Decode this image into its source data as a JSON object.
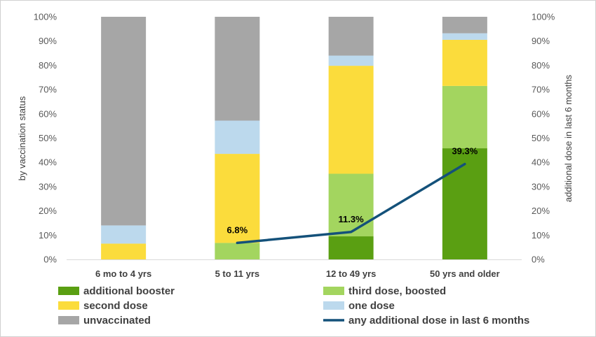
{
  "chart_data": {
    "type": "bar",
    "stacked": true,
    "categories": [
      "6 mo to 4 yrs",
      "5 to 11 yrs",
      "12 to 49 yrs",
      "50 yrs and older"
    ],
    "ylabel": "by vaccination status",
    "y2label": "additional dose in last 6 months",
    "ylim": [
      0,
      100
    ],
    "y2lim": [
      0,
      100
    ],
    "yticks": [
      "0%",
      "10%",
      "20%",
      "30%",
      "40%",
      "50%",
      "60%",
      "70%",
      "80%",
      "90%",
      "100%"
    ],
    "grid": false,
    "legend_position": "bottom",
    "series": [
      {
        "name": "additional booster",
        "color": "#5a9f12",
        "values": [
          0,
          0,
          9.5,
          45.8
        ]
      },
      {
        "name": "third dose, boosted",
        "color": "#a3d55f",
        "values": [
          0,
          6.8,
          25.8,
          25.7
        ]
      },
      {
        "name": "second dose",
        "color": "#fbdc3c",
        "values": [
          6.5,
          36.7,
          44.5,
          19.0
        ]
      },
      {
        "name": "one dose",
        "color": "#bcd9ed",
        "values": [
          7.5,
          13.7,
          4.2,
          2.7
        ]
      },
      {
        "name": "unvaccinated",
        "color": "#a6a6a6",
        "values": [
          86.0,
          42.8,
          16.0,
          6.8
        ]
      }
    ],
    "line": {
      "name": "any additional dose in last 6 months",
      "color": "#14517a",
      "axis": "secondary",
      "values": [
        null,
        6.8,
        11.3,
        39.3
      ],
      "labels": [
        "",
        "6.8%",
        "11.3%",
        "39.3%"
      ]
    }
  }
}
